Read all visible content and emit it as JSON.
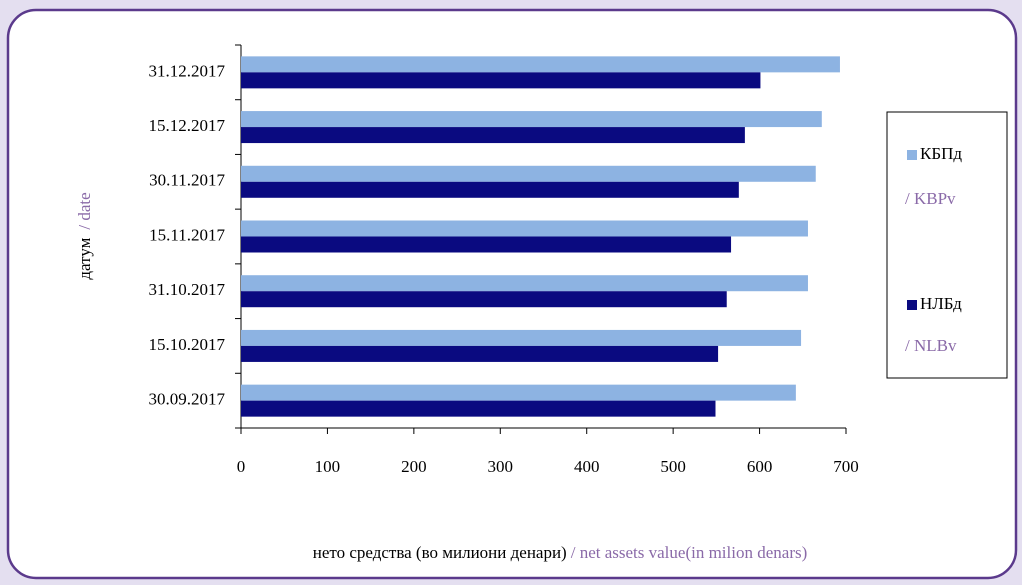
{
  "chart_data": {
    "type": "hbar",
    "categories": [
      "30.09.2017",
      "15.10.2017",
      "31.10.2017",
      "15.11.2017",
      "30.11.2017",
      "15.12.2017",
      "31.12.2017"
    ],
    "series": [
      {
        "name": "КБПд",
        "name_en": "/ KBPv",
        "color": "#8db3e2",
        "values": [
          642,
          648,
          656,
          656,
          665,
          672,
          693
        ]
      },
      {
        "name": "НЛБд",
        "name_en": "/ NLBv",
        "color": "#0a0a80",
        "values": [
          549,
          552,
          562,
          567,
          576,
          583,
          601
        ]
      }
    ],
    "xlim": [
      0,
      700
    ],
    "xticks": [
      0,
      100,
      200,
      300,
      400,
      500,
      600,
      700
    ],
    "x_label": "нето средства (во милиони денари)",
    "x_label_en": "/ net assets value(in milion denars)",
    "y_label": "датум",
    "y_label_en": "/ date",
    "legend": "right",
    "grid": false
  }
}
